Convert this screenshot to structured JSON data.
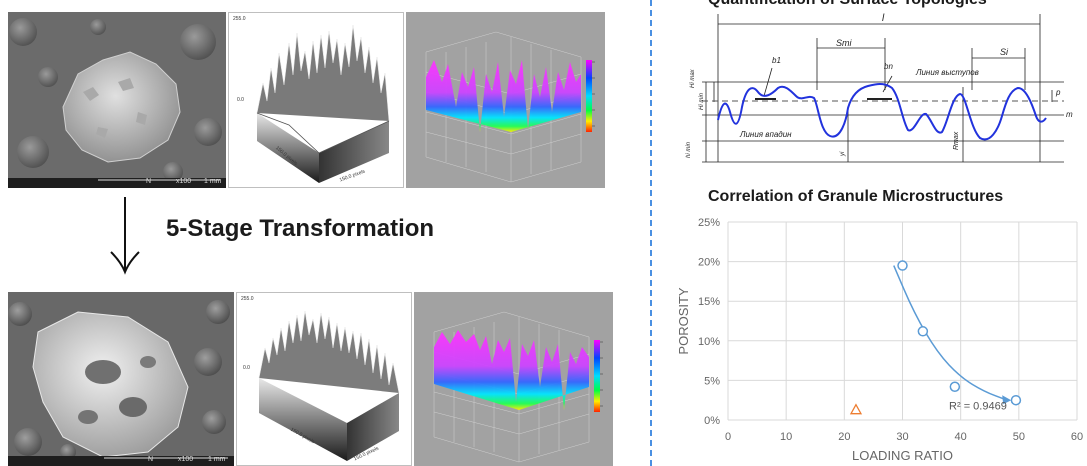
{
  "transformation_label": "5-Stage Transformation",
  "sem_before": {
    "mag": "x100",
    "scale": "1 mm",
    "detector": "N"
  },
  "sem_after": {
    "mag": "x100",
    "scale": "1 mm",
    "detector": "N"
  },
  "gray_plot_axis": {
    "z_top": "255.0",
    "z_zero": "0.0",
    "x_label": "150.0 pixels",
    "y_label": "150.0 pixels"
  },
  "right": {
    "top_title": "Quantification of Surface Topologies",
    "topology_labels": {
      "l": "l",
      "b1": "b1",
      "bn": "bn",
      "Smi": "Smi",
      "Si": "Si",
      "peak_line": "Линия выступов",
      "valley_line": "Линия впадин",
      "Himax": "Hi max",
      "Himin": "Hi min",
      "himin": "hi min",
      "yi": "yi",
      "Rmax": "Rmax",
      "p": "p",
      "m": "m"
    },
    "chart_title": "Correlation of Granule Microstructures"
  },
  "chart_data": {
    "type": "scatter",
    "title": "Correlation of Granule Microstructures",
    "xlabel": "LOADING RATIO",
    "ylabel": "POROSITY",
    "xlim": [
      0,
      60
    ],
    "ylim": [
      0,
      25
    ],
    "x_ticks": [
      "0",
      "10",
      "20",
      "30",
      "40",
      "50",
      "60"
    ],
    "y_ticks": [
      "0%",
      "5%",
      "10%",
      "15%",
      "20%",
      "25%"
    ],
    "grid": true,
    "series": [
      {
        "marker": "circle",
        "color": "#5b9bd5",
        "points": [
          [
            30,
            19.5
          ],
          [
            33.5,
            11.2
          ],
          [
            39,
            4.2
          ],
          [
            49.5,
            2.5
          ]
        ]
      },
      {
        "marker": "triangle",
        "color": "#ed7d31",
        "points": [
          [
            22,
            1.3
          ]
        ]
      }
    ],
    "trendline": {
      "points": [
        [
          28.5,
          19.5
        ],
        [
          32,
          13.5
        ],
        [
          36,
          8.5
        ],
        [
          40,
          5.4
        ],
        [
          44,
          3.6
        ],
        [
          48,
          2.5
        ]
      ],
      "color": "#5b9bd5"
    },
    "annotation": "R² = 0.9469"
  }
}
